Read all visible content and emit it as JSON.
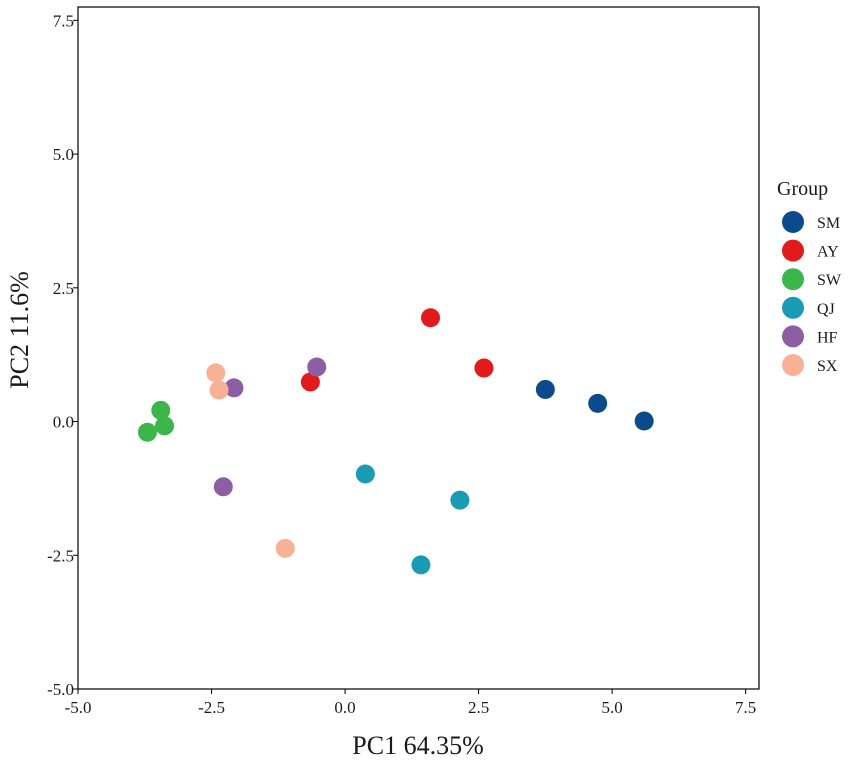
{
  "chart_data": {
    "type": "scatter",
    "title": "",
    "xlabel": "PC1 64.35%",
    "ylabel": "PC2 11.6%",
    "xlim": [
      -5.0,
      7.75
    ],
    "ylim": [
      -5.0,
      7.75
    ],
    "xticks": [
      -5.0,
      -2.5,
      0.0,
      2.5,
      5.0,
      7.5
    ],
    "yticks": [
      -5.0,
      -2.5,
      0.0,
      2.5,
      5.0,
      7.5
    ],
    "xtick_labels": [
      "-5.0",
      "-2.5",
      "0.0",
      "2.5",
      "5.0",
      "7.5"
    ],
    "ytick_labels": [
      "-5.0",
      "-2.5",
      "0.0",
      "2.5",
      "5.0",
      "7.5"
    ],
    "grid": false,
    "legend": {
      "title": "Group",
      "position": "right"
    },
    "series": [
      {
        "name": "SM",
        "color": "#0b4a8b",
        "points": [
          [
            3.75,
            0.6
          ],
          [
            4.73,
            0.34
          ],
          [
            5.6,
            0.01
          ]
        ]
      },
      {
        "name": "AY",
        "color": "#e31a1c",
        "points": [
          [
            1.6,
            1.94
          ],
          [
            2.6,
            1.0
          ],
          [
            -0.65,
            0.74
          ]
        ]
      },
      {
        "name": "SW",
        "color": "#3cb54a",
        "points": [
          [
            -3.45,
            0.21
          ],
          [
            -3.38,
            -0.08
          ],
          [
            -3.7,
            -0.2
          ]
        ]
      },
      {
        "name": "QJ",
        "color": "#1a9bb4",
        "points": [
          [
            0.38,
            -0.98
          ],
          [
            2.15,
            -1.47
          ],
          [
            1.42,
            -2.68
          ]
        ]
      },
      {
        "name": "HF",
        "color": "#8e5ea5",
        "points": [
          [
            -0.53,
            1.02
          ],
          [
            -2.08,
            0.63
          ],
          [
            -2.28,
            -1.22
          ]
        ]
      },
      {
        "name": "SX",
        "color": "#f8b195",
        "points": [
          [
            -2.42,
            0.91
          ],
          [
            -2.36,
            0.59
          ],
          [
            -1.12,
            -2.37
          ]
        ]
      }
    ]
  }
}
